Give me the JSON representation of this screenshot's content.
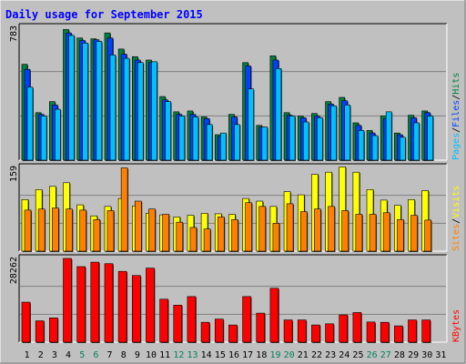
{
  "chart_data": {
    "type": "bar",
    "title": "Daily usage for September 2015",
    "categories": [
      "1",
      "2",
      "3",
      "4",
      "5",
      "6",
      "7",
      "8",
      "9",
      "10",
      "11",
      "12",
      "13",
      "14",
      "15",
      "16",
      "17",
      "18",
      "19",
      "20",
      "21",
      "22",
      "23",
      "24",
      "25",
      "26",
      "27",
      "28",
      "29",
      "30",
      "31"
    ],
    "weekend_days": [
      "5",
      "6",
      "12",
      "13",
      "19",
      "20",
      "26",
      "27"
    ],
    "panels": [
      {
        "name": "top",
        "max_label": "783",
        "ymax": 783,
        "legend": [
          {
            "text": "Pages",
            "color": "#00C0FF"
          },
          {
            "text": "Files",
            "color": "#0040FF"
          },
          {
            "text": "Hits",
            "color": "#008040"
          }
        ],
        "series": [
          {
            "name": "Hits",
            "color": "#008040",
            "values": [
              565,
              280,
              345,
              770,
              720,
              715,
              750,
              655,
              610,
              590,
              375,
              285,
              290,
              255,
              150,
              270,
              575,
              205,
              615,
              280,
              260,
              275,
              345,
              370,
              220,
              175,
              260,
              160,
              265,
              290,
              0
            ]
          },
          {
            "name": "Files",
            "color": "#0040FF",
            "values": [
              535,
              270,
              325,
              750,
              705,
              710,
              720,
              625,
              590,
              575,
              355,
              270,
              270,
              245,
              140,
              255,
              555,
              195,
              590,
              265,
              250,
              260,
              330,
              350,
              205,
              160,
              245,
              150,
              250,
              280,
              0
            ]
          },
          {
            "name": "Pages",
            "color": "#00C0FF",
            "values": [
              430,
              260,
              300,
              735,
              690,
              700,
              620,
              600,
              575,
              580,
              345,
              260,
              255,
              210,
              160,
              210,
              420,
              195,
              540,
              260,
              225,
              250,
              320,
              325,
              175,
              145,
              285,
              135,
              220,
              260,
              0
            ]
          }
        ]
      },
      {
        "name": "middle",
        "max_label": "159",
        "ymax": 159,
        "legend": [
          {
            "text": "Sites",
            "color": "#FF8000"
          },
          {
            "text": "Visits",
            "color": "#FFFF00"
          }
        ],
        "series": [
          {
            "name": "Visits",
            "color": "#FFFF00",
            "values": [
              98,
              117,
              123,
              130,
              88,
              67,
              85,
              100,
              86,
              72,
              69,
              65,
              68,
              72,
              71,
              70,
              100,
              95,
              85,
              113,
              107,
              146,
              150,
              160,
              150,
              117,
              97,
              87,
              98,
              115,
              0
            ]
          },
          {
            "name": "Sites",
            "color": "#FF8000",
            "values": [
              78,
              80,
              82,
              80,
              78,
              60,
              77,
              158,
              95,
              80,
              70,
              55,
              45,
              42,
              65,
              60,
              92,
              85,
              53,
              90,
              75,
              80,
              85,
              77,
              70,
              70,
              73,
              60,
              68,
              59,
              0
            ]
          }
        ]
      },
      {
        "name": "bottom",
        "max_label": "28262",
        "ymax": 28262,
        "legend": [
          {
            "text": "KBytes",
            "color": "#FF0000"
          }
        ],
        "series": [
          {
            "name": "KBytes",
            "color": "#FF0000",
            "values": [
              13500,
              7200,
              8200,
              28262,
              25500,
              27000,
              26500,
              23900,
              22500,
              25000,
              14500,
              12500,
              15400,
              6700,
              7800,
              5800,
              15400,
              9800,
              18200,
              7500,
              7500,
              5800,
              6200,
              9200,
              10000,
              6800,
              6700,
              5500,
              7500,
              7500,
              0
            ]
          }
        ]
      }
    ]
  },
  "colors": {
    "background": "#C0C0C0",
    "title": "#0000FF",
    "day_label": "#000000",
    "weekend_label": "#00805C"
  }
}
